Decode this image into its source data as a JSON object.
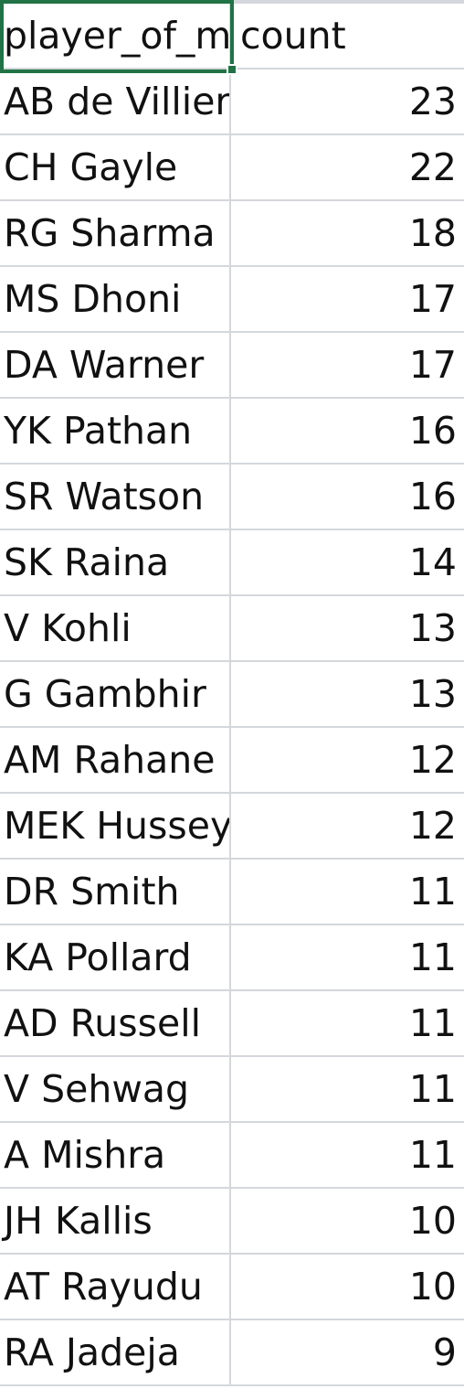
{
  "sheet": {
    "header": {
      "col_a": "player_of_match",
      "col_b": "count"
    },
    "rows": [
      {
        "player": "AB de Villiers",
        "count": "23"
      },
      {
        "player": "CH Gayle",
        "count": "22"
      },
      {
        "player": "RG Sharma",
        "count": "18"
      },
      {
        "player": "MS Dhoni",
        "count": "17"
      },
      {
        "player": "DA Warner",
        "count": "17"
      },
      {
        "player": "YK Pathan",
        "count": "16"
      },
      {
        "player": "SR Watson",
        "count": "16"
      },
      {
        "player": "SK Raina",
        "count": "14"
      },
      {
        "player": "V Kohli",
        "count": "13"
      },
      {
        "player": "G Gambhir",
        "count": "13"
      },
      {
        "player": "AM Rahane",
        "count": "12"
      },
      {
        "player": "MEK Hussey",
        "count": "12"
      },
      {
        "player": "DR Smith",
        "count": "11"
      },
      {
        "player": "KA Pollard",
        "count": "11"
      },
      {
        "player": "AD Russell",
        "count": "11"
      },
      {
        "player": "V Sehwag",
        "count": "11"
      },
      {
        "player": "A Mishra",
        "count": "11"
      },
      {
        "player": "JH Kallis",
        "count": "10"
      },
      {
        "player": "AT Rayudu",
        "count": "10"
      },
      {
        "player": "RA Jadeja",
        "count": "9"
      }
    ],
    "selection_color": "#217346",
    "gridline_color": "#d4d7dc"
  }
}
